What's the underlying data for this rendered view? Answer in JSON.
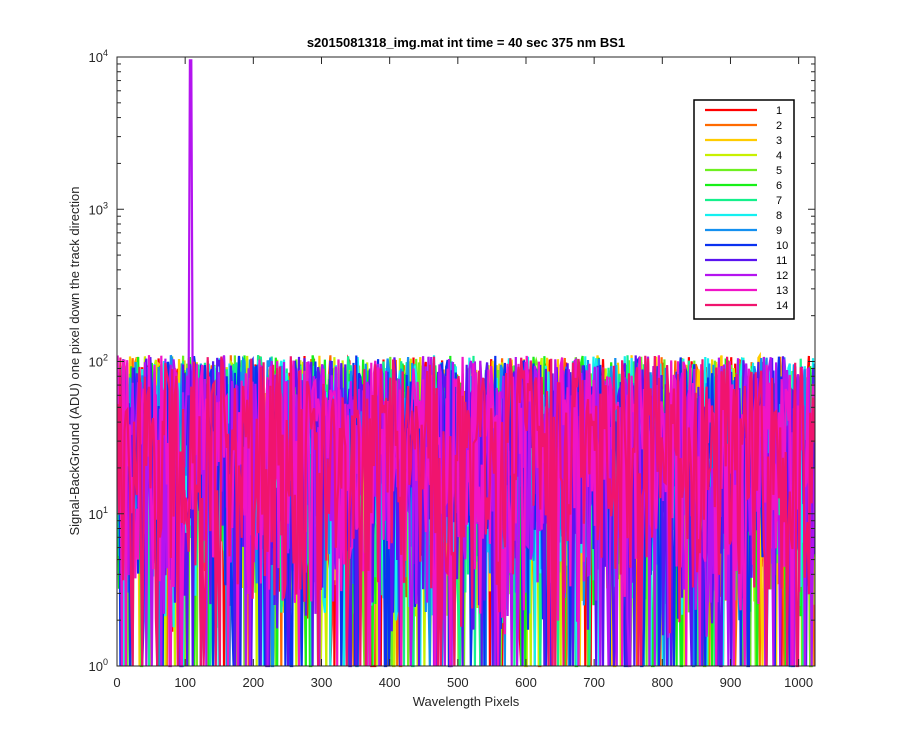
{
  "chart_data": {
    "type": "line",
    "title": "s2015081318_img.mat int time = 40 sec  375 nm BS1",
    "xlabel": "Wavelength Pixels",
    "ylabel": "Signal-BackGround (ADU) one pixel down the track direction",
    "xlim": [
      0,
      1024
    ],
    "ylim": [
      1,
      10000
    ],
    "yscale": "log",
    "x_ticks": [
      0,
      100,
      200,
      300,
      400,
      500,
      600,
      700,
      800,
      900,
      1000
    ],
    "x_tick_labels": [
      "0",
      "100",
      "200",
      "300",
      "400",
      "500",
      "600",
      "700",
      "800",
      "900",
      "1000"
    ],
    "y_ticks": [
      1,
      10,
      100,
      1000,
      10000
    ],
    "y_tick_labels": [
      {
        "base": "10",
        "exp": "0"
      },
      {
        "base": "10",
        "exp": "1"
      },
      {
        "base": "10",
        "exp": "2"
      },
      {
        "base": "10",
        "exp": "3"
      },
      {
        "base": "10",
        "exp": "4"
      }
    ],
    "grid": false,
    "legend_position": "top-right",
    "noise_range": [
      1,
      110
    ],
    "spike": {
      "x": 108,
      "y": 9500,
      "series": "12"
    },
    "series": [
      {
        "name": "1",
        "color": "#ff0000"
      },
      {
        "name": "2",
        "color": "#ff6a00"
      },
      {
        "name": "3",
        "color": "#ffcc00"
      },
      {
        "name": "4",
        "color": "#c8f000"
      },
      {
        "name": "5",
        "color": "#6ef020"
      },
      {
        "name": "6",
        "color": "#18f018"
      },
      {
        "name": "7",
        "color": "#14f08c"
      },
      {
        "name": "8",
        "color": "#14f0f0"
      },
      {
        "name": "9",
        "color": "#1490f0"
      },
      {
        "name": "10",
        "color": "#0a32f0"
      },
      {
        "name": "11",
        "color": "#5a14f0"
      },
      {
        "name": "12",
        "color": "#b414f0"
      },
      {
        "name": "13",
        "color": "#f014c8"
      },
      {
        "name": "14",
        "color": "#f0146e"
      }
    ]
  }
}
